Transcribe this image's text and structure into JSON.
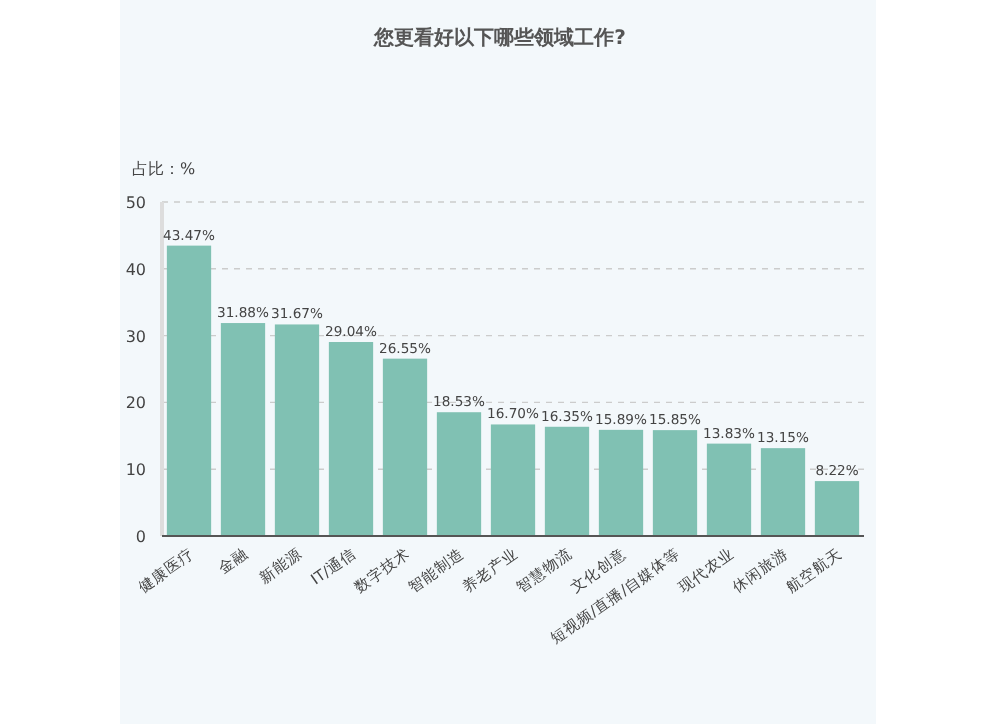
{
  "chart_data": {
    "type": "bar",
    "title": "您更看好以下哪些领域工作?",
    "ylabel": "占比：%",
    "categories": [
      "健康医疗",
      "金融",
      "新能源",
      "IT/通信",
      "数字技术",
      "智能制造",
      "养老产业",
      "智慧物流",
      "文化创意",
      "短视频/直播/自媒体等",
      "现代农业",
      "休闲旅游",
      "航空航天"
    ],
    "values": [
      43.47,
      31.88,
      31.67,
      29.04,
      26.55,
      18.53,
      16.7,
      16.35,
      15.89,
      15.85,
      13.83,
      13.15,
      8.22
    ],
    "value_labels": [
      "43.47%",
      "31.88%",
      "31.67%",
      "29.04%",
      "26.55%",
      "18.53%",
      "16.70%",
      "16.35%",
      "15.89%",
      "15.85%",
      "13.83%",
      "13.15%",
      "8.22%"
    ],
    "color": "#80c1b3",
    "ylim": [
      0,
      50
    ],
    "yticks": [
      0,
      10,
      20,
      30,
      40,
      50
    ],
    "grid": "y"
  }
}
